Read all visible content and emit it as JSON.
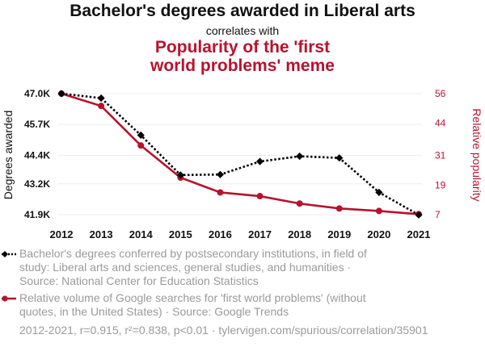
{
  "chart_data": {
    "type": "line",
    "title": "Bachelor's degrees awarded in Liberal arts",
    "subtitle": "correlates with",
    "title2": "Popularity of the 'first world problems' meme",
    "title2_lines": [
      "Popularity of the 'first",
      "world problems' meme"
    ],
    "categories": [
      "2012",
      "2013",
      "2014",
      "2015",
      "2016",
      "2017",
      "2018",
      "2019",
      "2020",
      "2021"
    ],
    "ylabel_left": "Degrees awarded",
    "ylabel_right": "Relative popularity",
    "left_ticks": [
      "47.0K",
      "45.7K",
      "44.4K",
      "43.2K",
      "41.9K"
    ],
    "left_tick_values": [
      47000,
      45700,
      44400,
      43200,
      41900
    ],
    "right_ticks": [
      "56",
      "44",
      "31",
      "19",
      "7"
    ],
    "right_tick_values": [
      56,
      44,
      31,
      19,
      7
    ],
    "ylim_left": [
      41900,
      47000
    ],
    "ylim_right": [
      7,
      56
    ],
    "series": [
      {
        "name": "Bachelor's degrees conferred by postsecondary institutions, in field of study: Liberal arts and sciences, general studies, and humanities · Source: National Center for Education Statistics",
        "axis": "left",
        "color": "#000000",
        "style": "dotted",
        "marker": "diamond",
        "values": [
          47000,
          46810,
          45250,
          43570,
          43590,
          44140,
          44360,
          44290,
          42840,
          41890
        ]
      },
      {
        "name": "Relative volume of Google searches for 'first world problems' (without quotes, in the United States) · Source: Google Trends",
        "axis": "right",
        "color": "#b8122d",
        "style": "solid",
        "marker": "circle",
        "values": [
          56,
          51,
          35,
          22,
          16,
          14.5,
          11.5,
          9.5,
          8.5,
          7.2
        ]
      }
    ]
  },
  "legend": {
    "series1_lines": [
      "Bachelor's degrees conferred by postsecondary institutions, in field of",
      "study: Liberal arts and sciences, general studies, and humanities ·",
      "Source: National Center for Education Statistics"
    ],
    "series2_lines": [
      "Relative volume of Google searches for 'first world problems' (without",
      "quotes, in the United States) · Source: Google Trends"
    ]
  },
  "footer": "2012-2021, r=0.915, r²=0.838, p<0.01 · tylervigen.com/spurious/correlation/35901"
}
